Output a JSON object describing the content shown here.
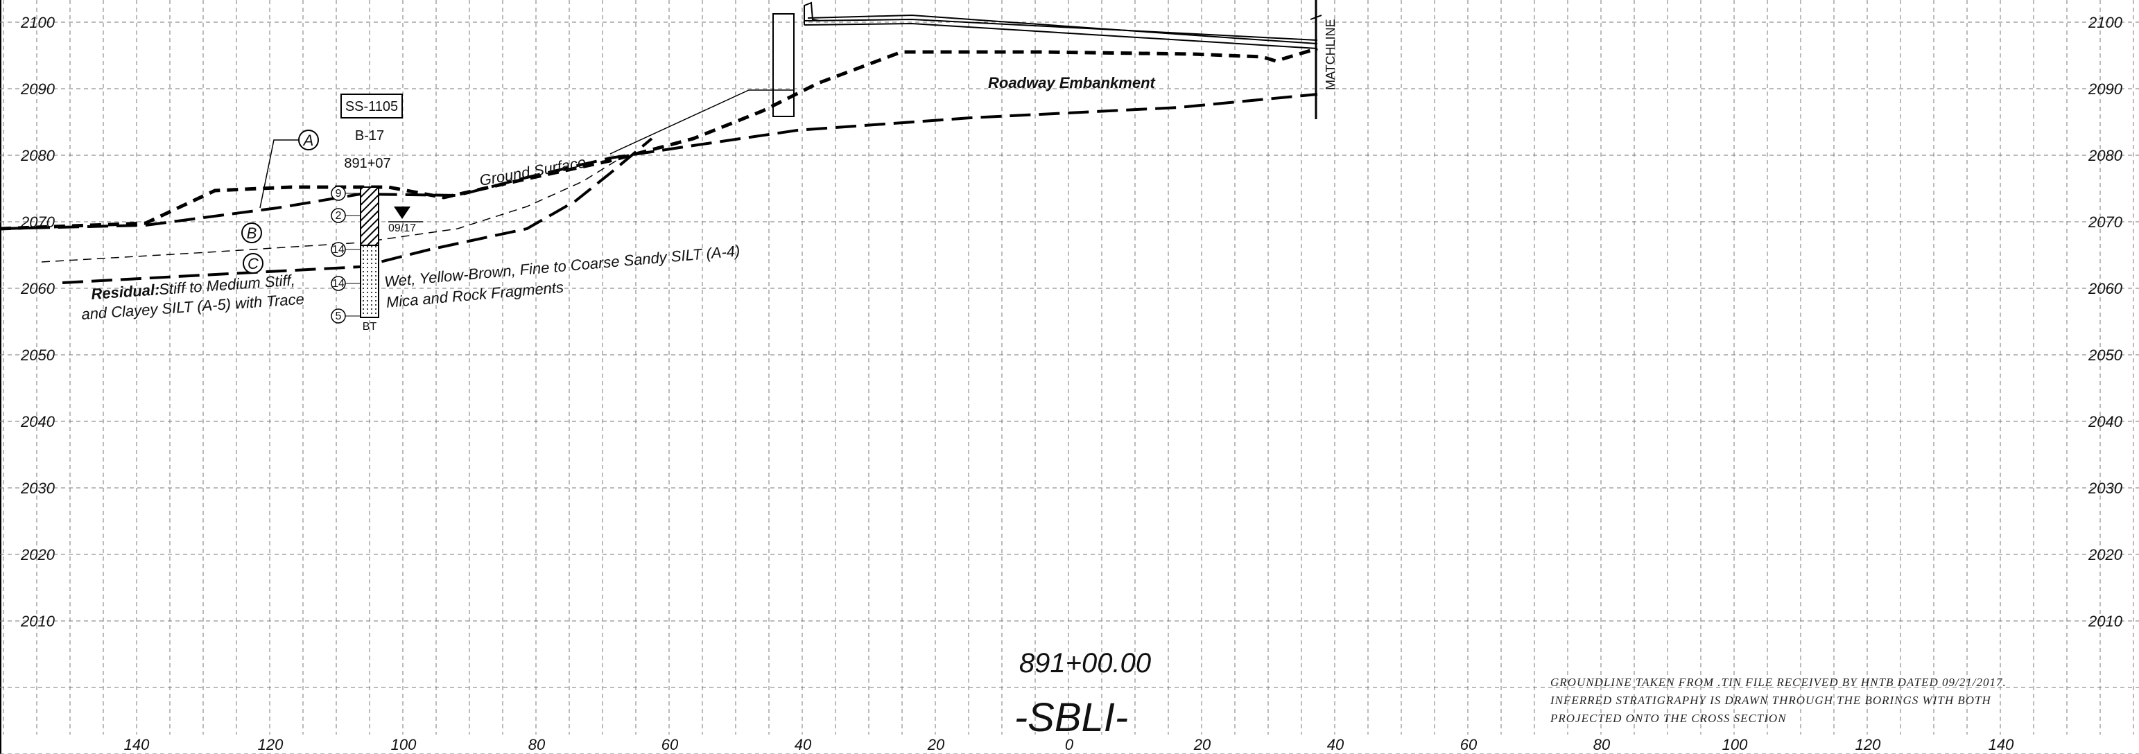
{
  "elevations": [
    "2100",
    "2090",
    "2080",
    "2070",
    "2060",
    "2050",
    "2040",
    "2030",
    "2020",
    "2010"
  ],
  "x_axis_ticks": [
    "140",
    "120",
    "100",
    "80",
    "60",
    "40",
    "20",
    "0",
    "20",
    "40",
    "60",
    "80",
    "100",
    "120",
    "140"
  ],
  "boring": {
    "id": "SS-1105",
    "name": "B-17",
    "station": "891+07",
    "water_date": "09/17",
    "sample_numbers": [
      "9",
      "2",
      "14",
      "14",
      "5"
    ],
    "bottom": "BT"
  },
  "callouts": [
    "A",
    "B",
    "C"
  ],
  "labels": {
    "ground_surface": "Ground Surface",
    "roadway_embankment": "Roadway Embankment",
    "matchline": "MATCHLINE",
    "residual_bold": "Residual:",
    "residual_line1": "Stiff to Medium Stiff,",
    "residual_line2": "and Clayey SILT (A-5) with Trace",
    "wet_line1": "Wet, Yellow-Brown, Fine to Coarse Sandy SILT (A-4)",
    "wet_line2": "Mica and Rock Fragments"
  },
  "station": "891+00.00",
  "alignment": "-SBLI-",
  "notes": [
    "GROUNDLINE TAKEN FROM .TIN FILE RECEIVED BY HNTB DATED 09/21/2017.",
    "INFERRED STRATIGRAPHY IS DRAWN THROUGH THE BORINGS WITH BOTH",
    "PROJECTED ONTO THE CROSS SECTION"
  ]
}
